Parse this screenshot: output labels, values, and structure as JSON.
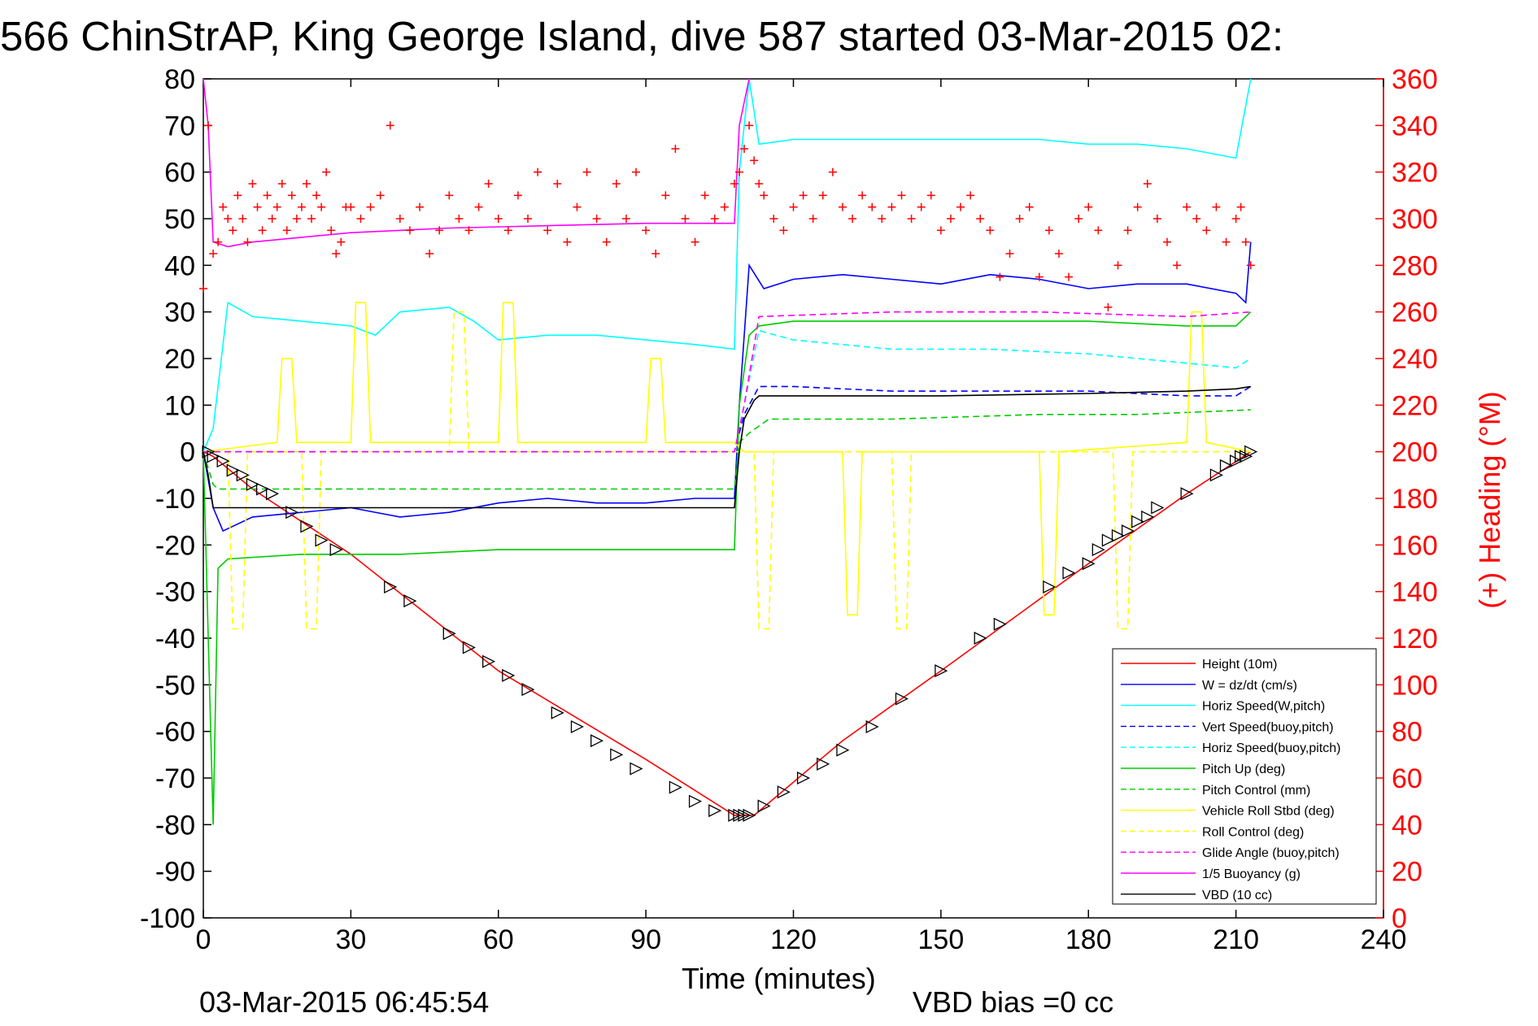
{
  "chart_data": {
    "type": "line",
    "title": "566 ChinStrAP, King George Island, dive 587 started 03-Mar-2015 02:",
    "xlabel": "Time (minutes)",
    "ylabel_right": "(+) Heading (°M)",
    "xlim": [
      0,
      240
    ],
    "ylim_left": [
      -100,
      80
    ],
    "ylim_right": [
      0,
      360
    ],
    "x_ticks": [
      "0",
      "30",
      "60",
      "90",
      "120",
      "150",
      "180",
      "210",
      "240"
    ],
    "y_left_ticks": [
      "80",
      "70",
      "60",
      "50",
      "40",
      "30",
      "20",
      "10",
      "0",
      "-10",
      "-20",
      "-30",
      "-40",
      "-50",
      "-60",
      "-70",
      "-80",
      "-90",
      "-100"
    ],
    "y_right_ticks": [
      "360",
      "340",
      "320",
      "300",
      "280",
      "260",
      "240",
      "220",
      "200",
      "180",
      "160",
      "140",
      "120",
      "100",
      "80",
      "60",
      "40",
      "20",
      "0"
    ],
    "grid": false,
    "legend_position": "bottom-right",
    "footer_date": "03-Mar-2015 06:45:54",
    "footer_vbd": "VBD bias =0 cc",
    "series": [
      {
        "name": "Height (10m)",
        "color": "#ff0000",
        "style": "solid",
        "x": [
          0,
          2,
          10,
          30,
          60,
          90,
          108,
          110,
          112,
          130,
          150,
          180,
          200,
          213
        ],
        "y": [
          0,
          -1,
          -8,
          -22,
          -47,
          -66,
          -78,
          -78,
          -78,
          -62,
          -47,
          -24,
          -9,
          0
        ]
      },
      {
        "name": "W = dz/dt (cm/s)",
        "color": "#0000ff",
        "style": "solid",
        "x": [
          0,
          2,
          4,
          10,
          20,
          30,
          40,
          50,
          60,
          70,
          80,
          90,
          100,
          108,
          109,
          111,
          114,
          120,
          130,
          140,
          150,
          160,
          170,
          180,
          190,
          200,
          210,
          212,
          213
        ],
        "y": [
          0,
          -12,
          -17,
          -14,
          -13,
          -12,
          -14,
          -13,
          -11,
          -10,
          -11,
          -11,
          -10,
          -10,
          10,
          40,
          35,
          37,
          38,
          37,
          36,
          38,
          37,
          35,
          36,
          36,
          34,
          32,
          45
        ]
      },
      {
        "name": "Horiz Speed(W,pitch)",
        "color": "#00ffff",
        "style": "solid",
        "x": [
          0,
          2,
          5,
          10,
          20,
          30,
          35,
          40,
          50,
          55,
          60,
          70,
          80,
          90,
          100,
          108,
          109,
          111,
          113,
          120,
          130,
          140,
          150,
          160,
          170,
          180,
          190,
          200,
          210,
          213
        ],
        "y": [
          0,
          5,
          32,
          29,
          28,
          27,
          25,
          30,
          31,
          28,
          24,
          25,
          25,
          24,
          23,
          22,
          60,
          80,
          66,
          67,
          67,
          67,
          67,
          67,
          67,
          66,
          66,
          65,
          63,
          80
        ]
      },
      {
        "name": "Vert Speed(buoy,pitch)",
        "color": "#0000ff",
        "style": "dashed",
        "x": [
          0,
          108,
          110,
          113,
          120,
          140,
          160,
          180,
          200,
          210,
          213
        ],
        "y": [
          0,
          0,
          8,
          14,
          14,
          13,
          13,
          13,
          12,
          12,
          14
        ]
      },
      {
        "name": "Horiz Speed(buoy,pitch)",
        "color": "#00ffff",
        "style": "dashed",
        "x": [
          0,
          108,
          110,
          113,
          120,
          140,
          160,
          180,
          200,
          210,
          213
        ],
        "y": [
          0,
          0,
          10,
          26,
          24,
          22,
          22,
          21,
          19,
          18,
          20
        ]
      },
      {
        "name": "Pitch Up (deg)",
        "color": "#00cc00",
        "style": "solid",
        "x": [
          0,
          2,
          3,
          5,
          20,
          40,
          60,
          80,
          100,
          108,
          109,
          111,
          113,
          120,
          140,
          160,
          180,
          200,
          210,
          213
        ],
        "y": [
          0,
          -80,
          -25,
          -23,
          -22,
          -22,
          -21,
          -21,
          -21,
          -21,
          10,
          25,
          27,
          28,
          28,
          28,
          28,
          27,
          27,
          30
        ]
      },
      {
        "name": "Pitch Control (mm)",
        "color": "#00cc00",
        "style": "dashed",
        "x": [
          0,
          2,
          3,
          50,
          108,
          109,
          111,
          115,
          140,
          170,
          190,
          213
        ],
        "y": [
          0,
          -7,
          -8,
          -8,
          -8,
          2,
          4,
          7,
          7,
          8,
          8,
          9
        ]
      },
      {
        "name": "Vehicle Roll Stbd (deg)",
        "color": "#ffff00",
        "style": "solid",
        "x": [
          0,
          15,
          16,
          18,
          19,
          30,
          31,
          33,
          34,
          60,
          61,
          63,
          64,
          90,
          91,
          93,
          94,
          108,
          110,
          130,
          131,
          133,
          134,
          170,
          171,
          173,
          174,
          200,
          201,
          203,
          204,
          213
        ],
        "y": [
          0,
          2,
          20,
          20,
          2,
          2,
          32,
          32,
          2,
          2,
          32,
          32,
          2,
          2,
          20,
          20,
          2,
          2,
          0,
          0,
          -35,
          -35,
          0,
          0,
          -35,
          -35,
          0,
          2,
          30,
          30,
          2,
          0
        ]
      },
      {
        "name": "Roll Control (deg)",
        "color": "#ffff00",
        "style": "dashed",
        "x": [
          0,
          5,
          6,
          8,
          9,
          20,
          21,
          23,
          24,
          50,
          51,
          53,
          54,
          108,
          112,
          113,
          115,
          116,
          140,
          141,
          143,
          144,
          185,
          186,
          188,
          189,
          213
        ],
        "y": [
          0,
          0,
          -38,
          -38,
          0,
          0,
          -38,
          -38,
          0,
          0,
          30,
          30,
          0,
          0,
          0,
          -38,
          -38,
          0,
          0,
          -38,
          -38,
          0,
          0,
          -38,
          -38,
          0,
          0
        ]
      },
      {
        "name": "Glide Angle (buoy,pitch)",
        "color": "#ff00ff",
        "style": "dashed",
        "x": [
          0,
          108,
          110,
          113,
          140,
          170,
          200,
          213
        ],
        "y": [
          0,
          0,
          10,
          29,
          30,
          30,
          29,
          30
        ]
      },
      {
        "name": "1/5 Buoyancy (g)",
        "color": "#ff00ff",
        "style": "solid",
        "x": [
          0,
          1,
          2,
          5,
          10,
          20,
          30,
          50,
          70,
          90,
          108,
          109,
          111
        ],
        "y": [
          80,
          70,
          45,
          44,
          45,
          46,
          47,
          48,
          48.5,
          49,
          49,
          70,
          80
        ]
      },
      {
        "name": "VBD (10 cc)",
        "color": "#000000",
        "style": "solid",
        "x": [
          0,
          1,
          2,
          3,
          60,
          108,
          109,
          110,
          112,
          113,
          150,
          180,
          200,
          210,
          213
        ],
        "y": [
          0,
          -5,
          -12,
          -12,
          -12,
          -12,
          0,
          7,
          11,
          12,
          12,
          12.5,
          13,
          13.5,
          14
        ]
      }
    ],
    "heading": {
      "color": "#ff0000",
      "marker": "+",
      "x": [
        0,
        1,
        2,
        3,
        4,
        5,
        6,
        7,
        8,
        9,
        10,
        11,
        12,
        13,
        14,
        15,
        16,
        17,
        18,
        19,
        20,
        21,
        22,
        23,
        24,
        25,
        26,
        27,
        28,
        29,
        30,
        32,
        34,
        36,
        38,
        40,
        42,
        44,
        46,
        48,
        50,
        52,
        54,
        56,
        58,
        60,
        62,
        64,
        66,
        68,
        70,
        72,
        74,
        76,
        78,
        80,
        82,
        84,
        86,
        88,
        90,
        92,
        94,
        96,
        98,
        100,
        102,
        104,
        106,
        108,
        109,
        110,
        111,
        112,
        113,
        114,
        116,
        118,
        120,
        122,
        124,
        126,
        128,
        130,
        132,
        134,
        136,
        138,
        140,
        142,
        144,
        146,
        148,
        150,
        152,
        154,
        156,
        158,
        160,
        162,
        164,
        166,
        168,
        170,
        172,
        174,
        176,
        178,
        180,
        182,
        184,
        186,
        188,
        190,
        192,
        194,
        196,
        198,
        200,
        202,
        204,
        206,
        208,
        210,
        211,
        212,
        213
      ],
      "y": [
        270,
        340,
        285,
        290,
        305,
        300,
        295,
        310,
        300,
        290,
        315,
        305,
        295,
        310,
        300,
        305,
        315,
        295,
        310,
        300,
        305,
        315,
        300,
        310,
        305,
        320,
        295,
        285,
        290,
        305,
        305,
        300,
        305,
        310,
        340,
        300,
        295,
        305,
        285,
        295,
        310,
        300,
        295,
        305,
        315,
        300,
        295,
        310,
        300,
        320,
        295,
        315,
        290,
        305,
        320,
        300,
        290,
        315,
        300,
        320,
        295,
        285,
        310,
        330,
        300,
        290,
        310,
        300,
        305,
        315,
        320,
        330,
        340,
        325,
        315,
        310,
        300,
        295,
        305,
        310,
        300,
        310,
        320,
        305,
        300,
        310,
        305,
        300,
        305,
        310,
        300,
        305,
        310,
        295,
        300,
        305,
        310,
        300,
        295,
        275,
        285,
        300,
        305,
        275,
        295,
        285,
        275,
        300,
        305,
        295,
        262,
        280,
        295,
        305,
        315,
        300,
        290,
        280,
        305,
        300,
        295,
        305,
        290,
        300,
        305,
        290,
        280
      ]
    },
    "triangles": {
      "color": "#000000",
      "x": [
        1,
        2,
        4,
        6,
        8,
        10,
        12,
        14,
        18,
        21,
        24,
        27,
        38,
        42,
        50,
        54,
        58,
        62,
        66,
        72,
        76,
        80,
        84,
        88,
        96,
        100,
        104,
        108,
        109,
        110,
        111,
        114,
        118,
        122,
        126,
        130,
        136,
        142,
        150,
        158,
        162,
        172,
        176,
        180,
        182,
        184,
        186,
        188,
        190,
        192,
        194,
        200,
        206,
        208,
        210,
        211,
        212,
        213
      ],
      "y": [
        0,
        -1,
        -2,
        -4,
        -5,
        -7,
        -8,
        -9,
        -13,
        -16,
        -19,
        -21,
        -29,
        -32,
        -39,
        -42,
        -45,
        -48,
        -51,
        -56,
        -59,
        -62,
        -65,
        -68,
        -72,
        -75,
        -77,
        -78,
        -78,
        -78,
        -78,
        -76,
        -73,
        -70,
        -67,
        -64,
        -59,
        -53,
        -47,
        -40,
        -37,
        -29,
        -26,
        -24,
        -21,
        -19,
        -18,
        -17,
        -15,
        -14,
        -12,
        -9,
        -5,
        -3,
        -2,
        -1,
        -1,
        0
      ]
    }
  }
}
